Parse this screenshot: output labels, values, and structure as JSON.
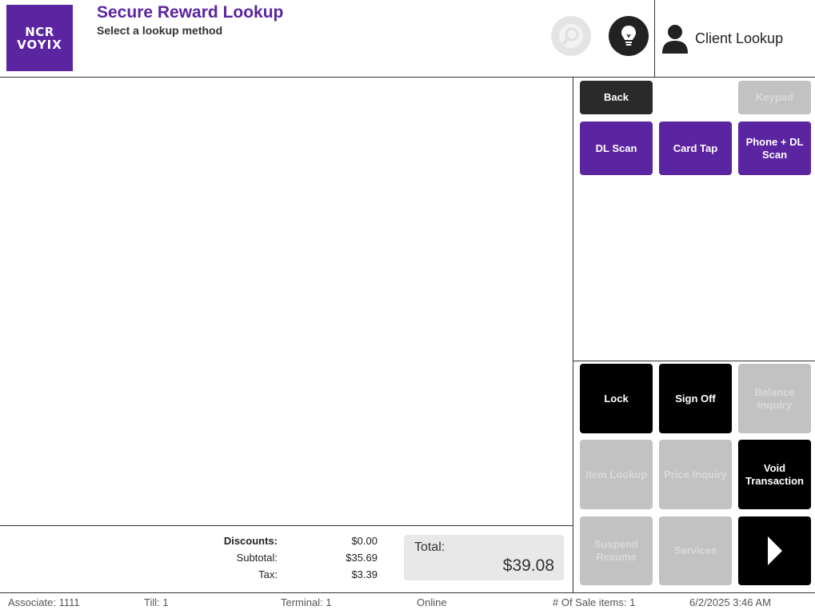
{
  "header": {
    "logo_line1": "NCR",
    "logo_line2": "VOYIX",
    "title": "Secure Reward Lookup",
    "subtitle": "Select a lookup method",
    "client_lookup_label": "Client Lookup"
  },
  "top_buttons": {
    "back": "Back",
    "keypad": "Keypad",
    "dl_scan": "DL Scan",
    "card_tap": "Card Tap",
    "phone_dl_scan": "Phone + DL Scan"
  },
  "bottom_buttons": {
    "lock": "Lock",
    "sign_off": "Sign Off",
    "balance_inquiry": "Balance Inquiry",
    "item_lookup": "Item Lookup",
    "price_inquiry": "Price Inquiry",
    "void_transaction": "Void Transaction",
    "suspend_resume": "Suspend Resume",
    "services": "Services"
  },
  "totals": {
    "discounts_label": "Discounts:",
    "discounts_value": "$0.00",
    "subtotal_label": "Subtotal:",
    "subtotal_value": "$35.69",
    "tax_label": "Tax:",
    "tax_value": "$3.39",
    "total_label": "Total:",
    "total_value": "$39.08"
  },
  "status_bar": {
    "associate": "Associate: 1111",
    "till": "Till: 1",
    "terminal": "Terminal: 1",
    "connection": "Online",
    "sale_items": "# Of Sale items: 1",
    "datetime": "6/2/2025 3:46 AM"
  },
  "colors": {
    "brand_purple": "#5b24a0",
    "dark_button": "#2a2a2a",
    "disabled_button": "#c2c2c2"
  }
}
